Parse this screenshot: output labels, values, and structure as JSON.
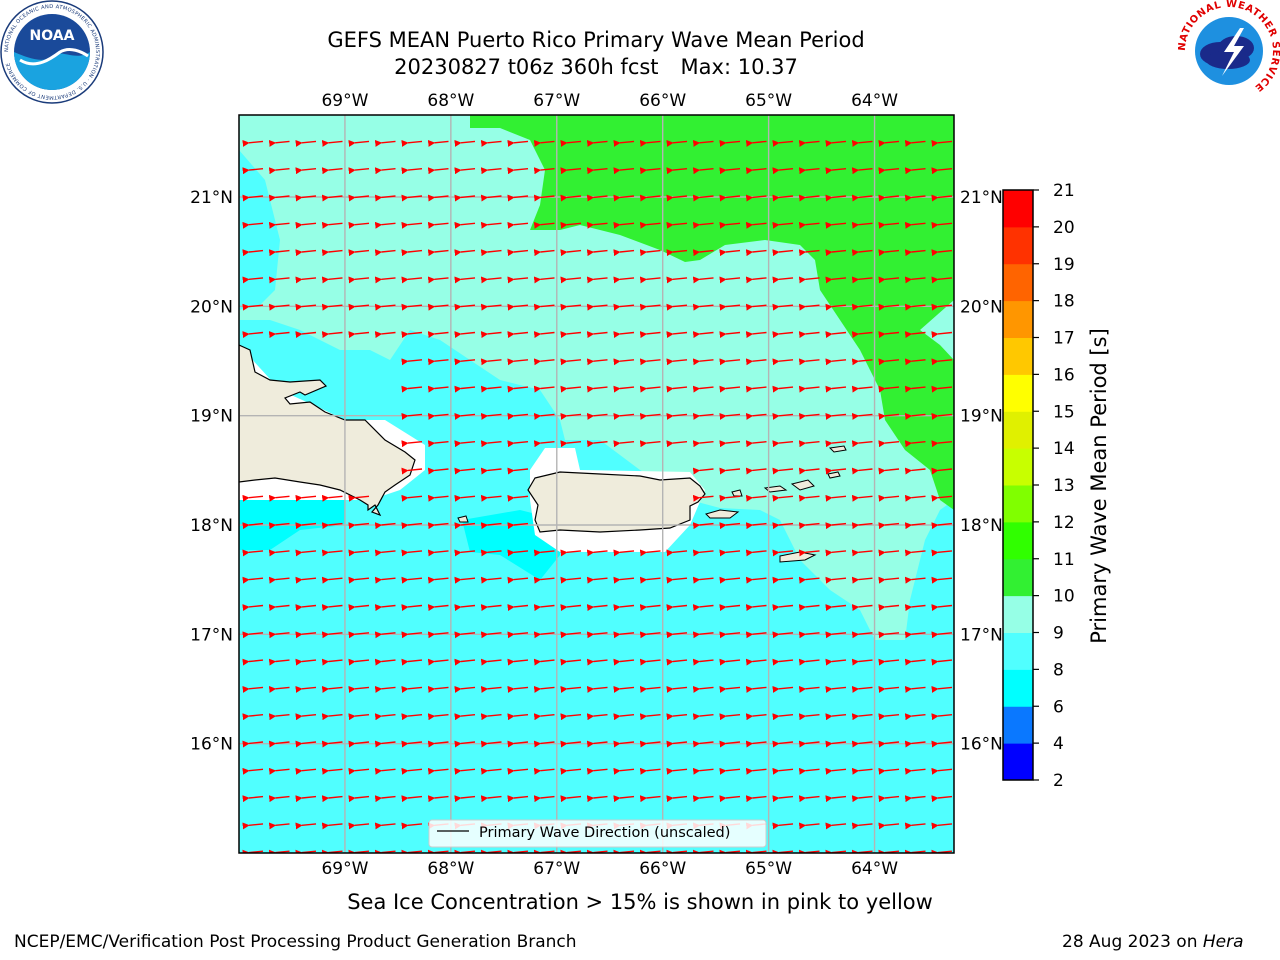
{
  "header": {
    "title_line1": "GEFS MEAN Puerto Rico Primary Wave Mean Period",
    "title_line2_run": "20230827 t06z 360h fcst",
    "title_line2_max": "Max: 10.37"
  },
  "logos": {
    "left_icon": "noaa-logo",
    "left_text": "NOAA",
    "left_ring_text": "NATIONAL OCEANIC AND ATMOSPHERIC ADMINISTRATION · U.S. DEPARTMENT OF COMMERCE",
    "right_icon": "nws-logo",
    "right_ring_text": "NATIONAL WEATHER SERVICE"
  },
  "caption": "Sea Ice Concentration > 15% is shown in pink to yellow",
  "footer": {
    "left": "NCEP/EMC/Verification Post Processing Product Generation Branch",
    "right_date": "28 Aug 2023 on",
    "right_machine": "Hera"
  },
  "chart_data": {
    "type": "heatmap",
    "title": "GEFS MEAN Puerto Rico Primary Wave Mean Period",
    "subtitle": "20230827 t06z 360h fcst   Max: 10.37",
    "max_value": 10.37,
    "projection": "lat-lon",
    "lon_range": [
      -70.0,
      -63.25
    ],
    "lat_range": [
      15.0,
      21.75
    ],
    "x_ticks": [
      {
        "value": -69,
        "label": "69°W"
      },
      {
        "value": -68,
        "label": "68°W"
      },
      {
        "value": -67,
        "label": "67°W"
      },
      {
        "value": -66,
        "label": "66°W"
      },
      {
        "value": -65,
        "label": "65°W"
      },
      {
        "value": -64,
        "label": "64°W"
      }
    ],
    "y_ticks": [
      {
        "value": 16,
        "label": "16°N"
      },
      {
        "value": 17,
        "label": "17°N"
      },
      {
        "value": 18,
        "label": "18°N"
      },
      {
        "value": 19,
        "label": "19°N"
      },
      {
        "value": 20,
        "label": "20°N"
      },
      {
        "value": 21,
        "label": "21°N"
      }
    ],
    "grid": true,
    "colorbar": {
      "label": "Primary Wave Mean Period [s]",
      "levels": [
        2,
        4,
        6,
        8,
        9,
        10,
        11,
        12,
        13,
        14,
        15,
        16,
        17,
        18,
        19,
        20,
        21
      ],
      "colors": [
        "#0000ff",
        "#0a78ff",
        "#00ffff",
        "#50ffff",
        "#96ffe6",
        "#32f032",
        "#30ff00",
        "#80ff00",
        "#c8ff00",
        "#e0f000",
        "#ffff00",
        "#ffc800",
        "#ff9600",
        "#ff6400",
        "#ff3200",
        "#ff0000"
      ]
    },
    "field_regions": [
      {
        "name": "south",
        "range": [
          8,
          9
        ],
        "color": "#50ffff"
      },
      {
        "name": "north",
        "range": [
          9,
          10
        ],
        "color": "#96ffe6"
      },
      {
        "name": "northeast",
        "range": [
          10,
          11
        ],
        "color": "#32f032"
      },
      {
        "name": "coastal-west",
        "range": [
          6,
          8
        ],
        "color": "#00ffff"
      }
    ],
    "vector_field": {
      "name": "Primary Wave Direction (unscaled)",
      "color": "#ff0000",
      "direction": "toward the west, slightly south"
    },
    "legend": {
      "entries": [
        "Primary Wave Direction (unscaled)"
      ],
      "placement": "bottom-center"
    },
    "land_color": "#efecdc"
  }
}
